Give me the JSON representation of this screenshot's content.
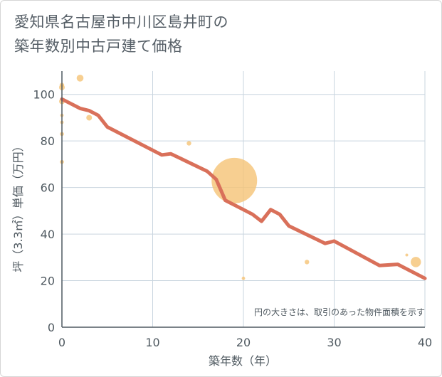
{
  "title": {
    "line1": "愛知県名古屋市中川区島井町の",
    "line2": "築年数別中古戸建て価格"
  },
  "chart_data": {
    "type": "scatter",
    "xlabel": "築年数（年）",
    "ylabel": "坪（3.3㎡）単価（万円）",
    "xlim": [
      0,
      40
    ],
    "ylim": [
      0,
      110
    ],
    "x_ticks": [
      "0",
      "10",
      "20",
      "30",
      "40"
    ],
    "y_ticks": [
      "0",
      "20",
      "40",
      "60",
      "80",
      "100"
    ],
    "note": "円の大きさは、取引のあった物件面積を示す",
    "colors": {
      "bubble": "#f5c376",
      "trend": "#d9705a",
      "grid": "#c9d5df",
      "text": "#4f5960"
    },
    "points": [
      {
        "x": 0,
        "y": 104,
        "size": 4
      },
      {
        "x": 0,
        "y": 103,
        "size": 5
      },
      {
        "x": 0,
        "y": 97,
        "size": 5
      },
      {
        "x": 0,
        "y": 91,
        "size": 3
      },
      {
        "x": 0,
        "y": 88,
        "size": 3
      },
      {
        "x": 0,
        "y": 83,
        "size": 3.5
      },
      {
        "x": 0,
        "y": 71,
        "size": 3.5
      },
      {
        "x": 2,
        "y": 107,
        "size": 6
      },
      {
        "x": 3,
        "y": 90,
        "size": 5
      },
      {
        "x": 14,
        "y": 79,
        "size": 4
      },
      {
        "x": 19,
        "y": 63,
        "size": 40
      },
      {
        "x": 20,
        "y": 21,
        "size": 3
      },
      {
        "x": 27,
        "y": 28,
        "size": 4
      },
      {
        "x": 38,
        "y": 31,
        "size": 2.5
      },
      {
        "x": 39,
        "y": 28,
        "size": 9
      }
    ],
    "trend": [
      {
        "x": 0,
        "y": 98
      },
      {
        "x": 2,
        "y": 94
      },
      {
        "x": 3,
        "y": 93
      },
      {
        "x": 4,
        "y": 91
      },
      {
        "x": 5,
        "y": 86
      },
      {
        "x": 11,
        "y": 74
      },
      {
        "x": 12,
        "y": 74.5
      },
      {
        "x": 16,
        "y": 67
      },
      {
        "x": 17,
        "y": 63.5
      },
      {
        "x": 18,
        "y": 54.5
      },
      {
        "x": 19,
        "y": 52.5
      },
      {
        "x": 20,
        "y": 50.5
      },
      {
        "x": 21,
        "y": 48.5
      },
      {
        "x": 22,
        "y": 45.5
      },
      {
        "x": 23,
        "y": 50.5
      },
      {
        "x": 24,
        "y": 48.5
      },
      {
        "x": 25,
        "y": 43.5
      },
      {
        "x": 29,
        "y": 36
      },
      {
        "x": 30,
        "y": 37
      },
      {
        "x": 35,
        "y": 26.5
      },
      {
        "x": 37,
        "y": 27
      },
      {
        "x": 38,
        "y": 25
      },
      {
        "x": 40,
        "y": 21
      }
    ]
  }
}
